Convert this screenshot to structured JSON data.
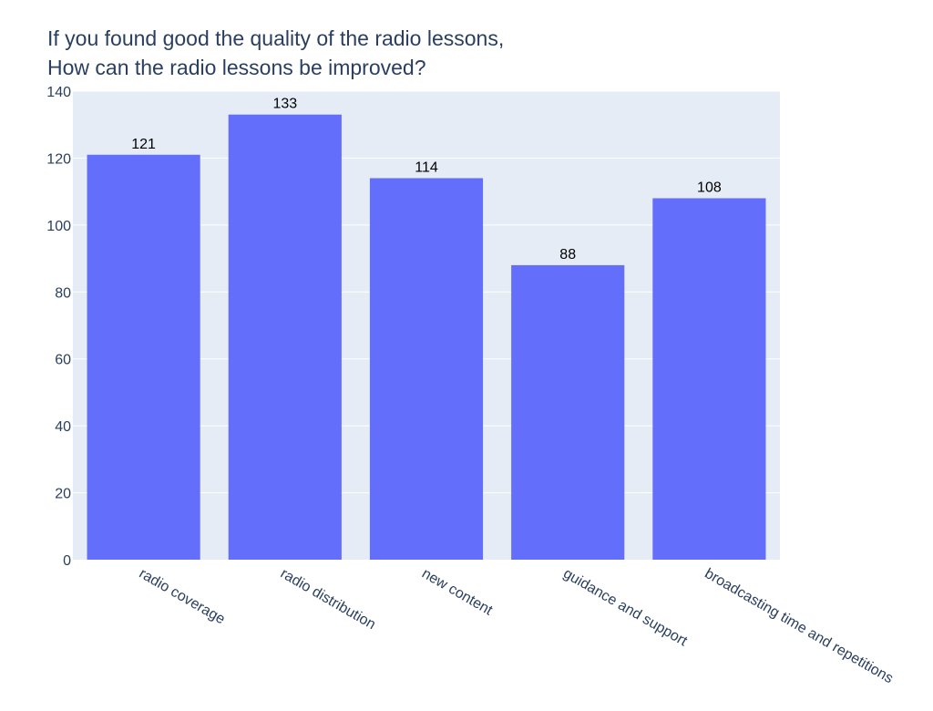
{
  "chart_data": {
    "type": "bar",
    "title_lines": [
      "If you found good the quality of the radio lessons,",
      "How can the radio lessons be improved?"
    ],
    "xlabel": "",
    "ylabel": "",
    "categories": [
      "radio coverage",
      "radio distribution",
      "new content",
      "guidance and support",
      "broadcasting time and repetitions"
    ],
    "values": [
      121,
      133,
      114,
      88,
      108
    ],
    "data_labels": [
      "121",
      "133",
      "114",
      "88",
      "108"
    ],
    "ylim": [
      0,
      140
    ],
    "y_ticks": [
      0,
      20,
      40,
      60,
      80,
      100,
      120,
      140
    ],
    "grid": true,
    "legend": "none",
    "colors": {
      "bar": "#636efa",
      "plot_bg": "#e5ecf6",
      "grid": "#ffffff",
      "text": "#2a3f5f",
      "data_label": "#000000"
    }
  }
}
